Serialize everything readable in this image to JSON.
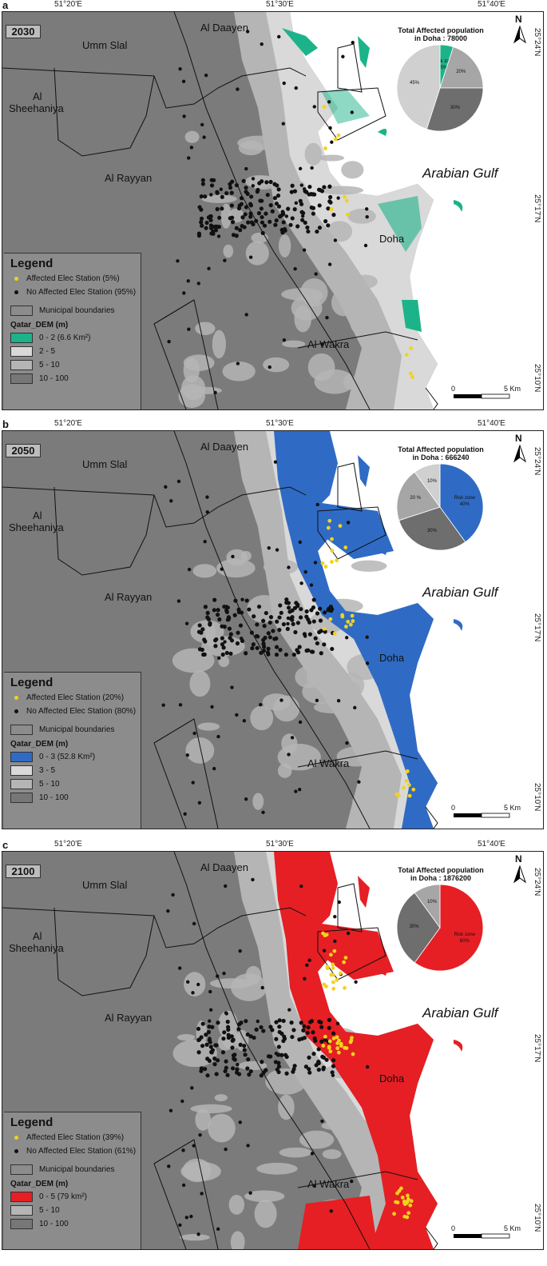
{
  "coords": {
    "lon_ticks": [
      "51°20'E",
      "51°30'E",
      "51°40'E"
    ],
    "lat_ticks": [
      "25°24'N",
      "25°17'N",
      "25°10'N"
    ]
  },
  "places": {
    "umm_slal": "Umm Slal",
    "al_daayen": "Al Daayen",
    "al_sheehaniya": "Al\nSheehaniya",
    "al_sheehaniya_1": "Al",
    "al_sheehaniya_2": "Sheehaniya",
    "al_rayyan": "Al Rayyan",
    "doha": "Doha",
    "al_wakra": "Al Wakra",
    "arabian_gulf": "Arabian Gulf"
  },
  "north_label": "N",
  "scale": {
    "zero": "0",
    "five": "5 Km"
  },
  "legend_common": {
    "title": "Legend",
    "boundaries": "Municipal boundaries",
    "dem_title": "Qatar_DEM (m)"
  },
  "colors": {
    "affected": "#f2d21c",
    "not_affected": "#111111",
    "dem_light": "#d9d9d9",
    "dem_mid": "#b5b5b5",
    "dem_dark": "#777777",
    "panel_a": "#1db38a",
    "panel_b": "#2f6bc4",
    "panel_c": "#e51f24"
  },
  "panels": [
    {
      "letter": "a",
      "year": "2030",
      "pie_title_1": "Total Affected population",
      "pie_title_2": "in Doha : 78000",
      "affected_station": "Affected  Elec Station (5%)",
      "not_affected_station": "No Affected  Elec Station (95%)",
      "dem_classes": [
        "0 - 2 (6.6 Km²)",
        "2 - 5",
        "5 - 10",
        "10 - 100"
      ],
      "pie": [
        {
          "label": "Risk zone",
          "pct": "5%",
          "value": 5,
          "color": "#1db38a"
        },
        {
          "label": "20%",
          "pct": "",
          "value": 20,
          "color": "#a6a6a6"
        },
        {
          "label": "30%",
          "pct": "",
          "value": 30,
          "color": "#6e6e6e"
        },
        {
          "label": "45%",
          "pct": "",
          "value": 45,
          "color": "#d0d0d0"
        }
      ]
    },
    {
      "letter": "b",
      "year": "2050",
      "pie_title_1": "Total Affected population",
      "pie_title_2": "in Doha : 666240",
      "affected_station": "Affected  Elec Station (20%)",
      "not_affected_station": "No Affected  Elec Station (80%)",
      "dem_classes": [
        "0 - 3 (52.8 Km²)",
        "3 - 5",
        "5 - 10",
        "10 - 100"
      ],
      "pie": [
        {
          "label": "Risk zone",
          "pct": "40%",
          "value": 40,
          "color": "#2f6bc4"
        },
        {
          "label": "30%",
          "pct": "",
          "value": 30,
          "color": "#6e6e6e"
        },
        {
          "label": "20 %",
          "pct": "",
          "value": 20,
          "color": "#a6a6a6"
        },
        {
          "label": "10%",
          "pct": "",
          "value": 10,
          "color": "#d0d0d0"
        }
      ]
    },
    {
      "letter": "c",
      "year": "2100",
      "pie_title_1": "Total Affected population",
      "pie_title_2": "in Doha : 1876200",
      "affected_station": "Affected  Elec Station (39%)",
      "not_affected_station": "No Affected  Elec Station (61%)",
      "dem_classes": [
        "0 - 5 (79 km²)",
        "5 - 10",
        "10 - 100"
      ],
      "pie": [
        {
          "label": "Risk zone",
          "pct": "60%",
          "value": 60,
          "color": "#e51f24"
        },
        {
          "label": "30%",
          "pct": "",
          "value": 30,
          "color": "#6e6e6e"
        },
        {
          "label": "10%",
          "pct": "",
          "value": 10,
          "color": "#a6a6a6"
        }
      ]
    }
  ]
}
